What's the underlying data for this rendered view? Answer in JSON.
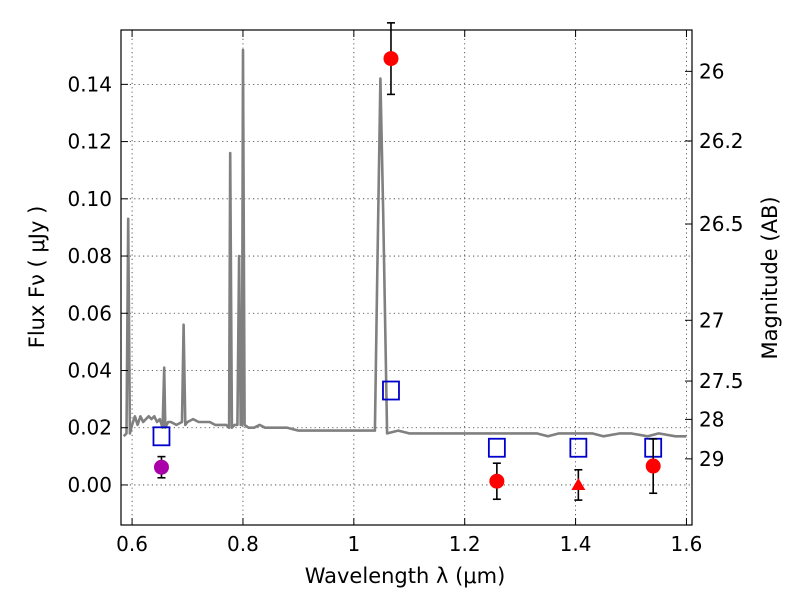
{
  "chart_data": {
    "type": "scatter",
    "xlabel": "Wavelength  λ (μm)",
    "ylabel": "Flux  Fν  ( μJy )",
    "y2label": "Magnitude (AB)",
    "xlim": [
      0.58,
      1.61
    ],
    "ylim": [
      -0.014,
      0.159
    ],
    "grid": true,
    "x_ticks": [
      0.6,
      0.8,
      1.0,
      1.2,
      1.4,
      1.6
    ],
    "x_tick_labels": [
      "0.6",
      "0.8",
      "1",
      "1.2",
      "1.4",
      "1.6"
    ],
    "y_ticks": [
      0.0,
      0.02,
      0.04,
      0.06,
      0.08,
      0.1,
      0.12,
      0.14
    ],
    "y_tick_labels": [
      "0.00",
      "0.02",
      "0.04",
      "0.06",
      "0.08",
      "0.10",
      "0.12",
      "0.14"
    ],
    "mag_ticks": [
      26,
      26.2,
      26.5,
      27,
      27.5,
      28,
      29
    ],
    "mag_tick_labels": [
      "26",
      "26.2",
      "26.5",
      "27",
      "27.5",
      "28",
      "29"
    ],
    "colors": {
      "sed": "#808080",
      "measurement": "#ff0000",
      "measurement_purple": "#aa00aa",
      "model_band": "#0000cc",
      "errorbar": "#000000"
    },
    "series": [
      {
        "kind": "sed-line",
        "points": [
          [
            0.585,
            0.017
          ],
          [
            0.59,
            0.018
          ],
          [
            0.593,
            0.093
          ],
          [
            0.596,
            0.018
          ],
          [
            0.6,
            0.021
          ],
          [
            0.605,
            0.024
          ],
          [
            0.61,
            0.021
          ],
          [
            0.615,
            0.024
          ],
          [
            0.62,
            0.022
          ],
          [
            0.625,
            0.023
          ],
          [
            0.63,
            0.024
          ],
          [
            0.635,
            0.023
          ],
          [
            0.64,
            0.024
          ],
          [
            0.645,
            0.022
          ],
          [
            0.65,
            0.023
          ],
          [
            0.655,
            0.02
          ],
          [
            0.658,
            0.041
          ],
          [
            0.66,
            0.02
          ],
          [
            0.665,
            0.022
          ],
          [
            0.67,
            0.022
          ],
          [
            0.68,
            0.021
          ],
          [
            0.69,
            0.022
          ],
          [
            0.693,
            0.056
          ],
          [
            0.696,
            0.021
          ],
          [
            0.7,
            0.022
          ],
          [
            0.71,
            0.023
          ],
          [
            0.72,
            0.022
          ],
          [
            0.73,
            0.022
          ],
          [
            0.74,
            0.022
          ],
          [
            0.75,
            0.021
          ],
          [
            0.76,
            0.021
          ],
          [
            0.77,
            0.021
          ],
          [
            0.775,
            0.02
          ],
          [
            0.777,
            0.116
          ],
          [
            0.78,
            0.02
          ],
          [
            0.785,
            0.021
          ],
          [
            0.79,
            0.021
          ],
          [
            0.793,
            0.08
          ],
          [
            0.796,
            0.021
          ],
          [
            0.798,
            0.021
          ],
          [
            0.8,
            0.152
          ],
          [
            0.803,
            0.021
          ],
          [
            0.81,
            0.02
          ],
          [
            0.82,
            0.02
          ],
          [
            0.83,
            0.021
          ],
          [
            0.84,
            0.02
          ],
          [
            0.86,
            0.02
          ],
          [
            0.88,
            0.02
          ],
          [
            0.9,
            0.019
          ],
          [
            0.92,
            0.019
          ],
          [
            0.94,
            0.019
          ],
          [
            0.96,
            0.019
          ],
          [
            0.98,
            0.019
          ],
          [
            1.0,
            0.019
          ],
          [
            1.02,
            0.019
          ],
          [
            1.038,
            0.019
          ],
          [
            1.042,
            0.07
          ],
          [
            1.048,
            0.142
          ],
          [
            1.053,
            0.095
          ],
          [
            1.06,
            0.018
          ],
          [
            1.08,
            0.019
          ],
          [
            1.1,
            0.018
          ],
          [
            1.15,
            0.018
          ],
          [
            1.2,
            0.018
          ],
          [
            1.25,
            0.018
          ],
          [
            1.3,
            0.018
          ],
          [
            1.33,
            0.018
          ],
          [
            1.35,
            0.017
          ],
          [
            1.37,
            0.018
          ],
          [
            1.4,
            0.018
          ],
          [
            1.43,
            0.018
          ],
          [
            1.45,
            0.017
          ],
          [
            1.48,
            0.018
          ],
          [
            1.5,
            0.018
          ],
          [
            1.53,
            0.017
          ],
          [
            1.55,
            0.018
          ],
          [
            1.58,
            0.017
          ],
          [
            1.6,
            0.017
          ]
        ]
      },
      {
        "kind": "model-bands",
        "x": [
          0.653,
          1.067,
          1.258,
          1.405,
          1.54
        ],
        "y": [
          0.017,
          0.033,
          0.013,
          0.013,
          0.013
        ]
      },
      {
        "kind": "measurements",
        "x": [
          1.067,
          1.258,
          1.54
        ],
        "y": [
          0.149,
          0.0013,
          0.0066
        ],
        "yerr": [
          0.0125,
          0.0063,
          0.0095
        ]
      },
      {
        "kind": "measurement-purple",
        "x": [
          0.653
        ],
        "y": [
          0.0062
        ],
        "yerr": [
          0.0037
        ]
      },
      {
        "kind": "upper-limit",
        "x": [
          1.405
        ],
        "y": [
          0.0
        ],
        "yerr": [
          0.0053
        ]
      }
    ]
  }
}
